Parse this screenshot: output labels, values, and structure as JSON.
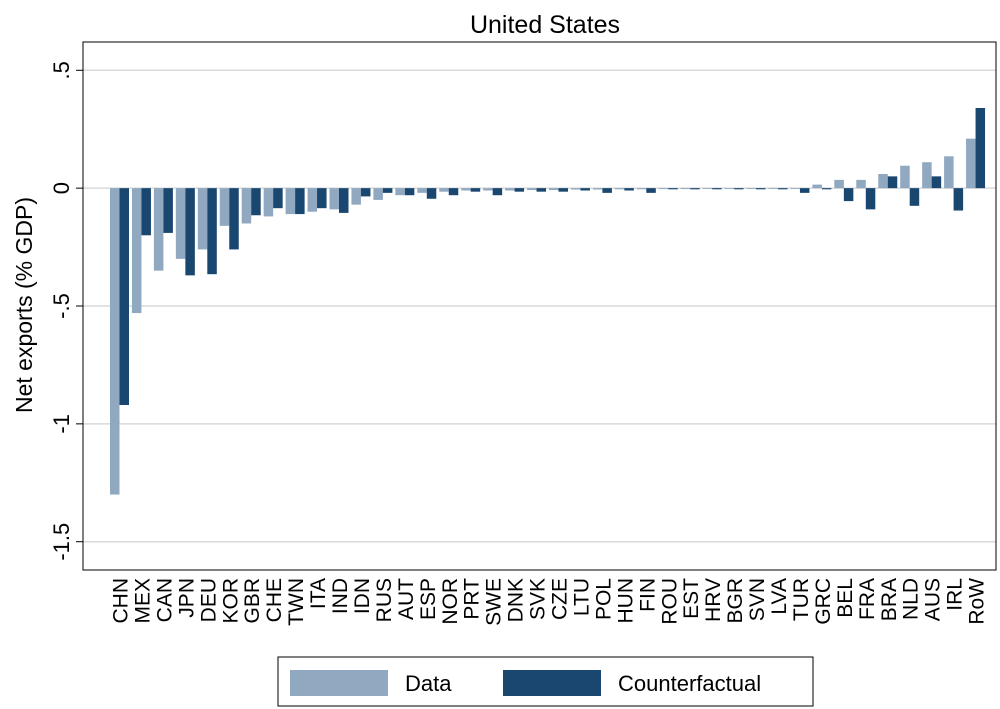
{
  "chart_data": {
    "type": "bar",
    "title": "United States",
    "xlabel": "",
    "ylabel": "Net exports (% GDP)",
    "ylim": [
      -1.62,
      0.62
    ],
    "yticks": [
      0.5,
      0,
      -0.5,
      -1,
      -1.5
    ],
    "ytick_labels": [
      ".5",
      "0",
      "-.5",
      "-1",
      "-1.5"
    ],
    "grid": true,
    "legend_position": "bottom",
    "categories": [
      "CHN",
      "MEX",
      "CAN",
      "JPN",
      "DEU",
      "KOR",
      "GBR",
      "CHE",
      "TWN",
      "ITA",
      "IND",
      "IDN",
      "RUS",
      "AUT",
      "ESP",
      "NOR",
      "PRT",
      "SWE",
      "DNK",
      "SVK",
      "CZE",
      "LTU",
      "POL",
      "HUN",
      "FIN",
      "ROU",
      "EST",
      "HRV",
      "BGR",
      "SVN",
      "LVA",
      "TUR",
      "GRC",
      "BEL",
      "FRA",
      "BRA",
      "NLD",
      "AUS",
      "IRL",
      "RoW"
    ],
    "series": [
      {
        "name": "Data",
        "color": "#90a8c0",
        "values": [
          -1.3,
          -0.53,
          -0.35,
          -0.3,
          -0.26,
          -0.16,
          -0.15,
          -0.12,
          -0.11,
          -0.1,
          -0.09,
          -0.07,
          -0.05,
          -0.03,
          -0.02,
          -0.015,
          -0.01,
          -0.01,
          -0.01,
          -0.008,
          -0.008,
          -0.006,
          -0.006,
          -0.005,
          -0.005,
          -0.004,
          -0.004,
          -0.003,
          -0.003,
          -0.003,
          -0.003,
          -0.003,
          0.015,
          0.035,
          0.035,
          0.06,
          0.095,
          0.11,
          0.135,
          0.21
        ]
      },
      {
        "name": "Counterfactual",
        "color": "#1a476f",
        "values": [
          -0.92,
          -0.2,
          -0.19,
          -0.37,
          -0.365,
          -0.26,
          -0.115,
          -0.085,
          -0.11,
          -0.085,
          -0.105,
          -0.035,
          -0.02,
          -0.03,
          -0.045,
          -0.03,
          -0.015,
          -0.03,
          -0.015,
          -0.015,
          -0.015,
          -0.01,
          -0.02,
          -0.01,
          -0.02,
          -0.005,
          -0.005,
          -0.005,
          -0.005,
          -0.005,
          -0.005,
          -0.02,
          -0.005,
          -0.055,
          -0.09,
          0.05,
          -0.075,
          0.05,
          -0.095,
          0.34
        ]
      }
    ]
  }
}
